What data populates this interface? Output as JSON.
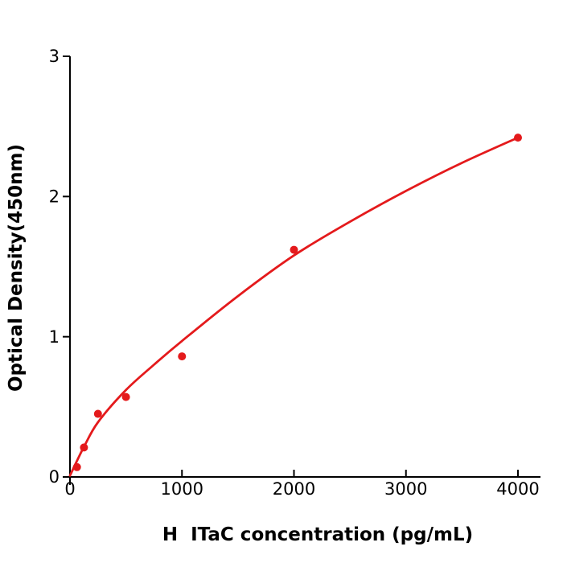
{
  "figure": {
    "background": "#ffffff",
    "accent_color": "#e41a1c",
    "axis_color": "#000000",
    "text_color": "#000000"
  },
  "chart_data": {
    "type": "scatter",
    "title": "",
    "xlabel": "H  ITaC concentration (pg/mL)",
    "ylabel": "Optical Density(450nm)",
    "xlim": [
      0,
      4200
    ],
    "ylim": [
      0,
      3
    ],
    "x_ticks": [
      0,
      1000,
      2000,
      3000,
      4000
    ],
    "x_tick_labels": [
      "0",
      "1000",
      "2000",
      "3000",
      "4000"
    ],
    "y_ticks": [
      0,
      1,
      2,
      3
    ],
    "y_tick_labels": [
      "0",
      "1",
      "2",
      "3"
    ],
    "grid": false,
    "legend": false,
    "series": [
      {
        "name": "standard-points",
        "kind": "scatter",
        "color": "#e41a1c",
        "marker": "circle",
        "x": [
          62.5,
          125,
          250,
          500,
          1000,
          2000,
          4000
        ],
        "y": [
          0.07,
          0.21,
          0.45,
          0.57,
          0.86,
          1.62,
          2.42
        ]
      },
      {
        "name": "fit-curve",
        "kind": "line",
        "color": "#e41a1c",
        "x": [
          0,
          62.5,
          125,
          250,
          500,
          750,
          1000,
          1500,
          2000,
          2500,
          3000,
          3500,
          4000
        ],
        "y": [
          0.01,
          0.115,
          0.215,
          0.39,
          0.62,
          0.8,
          0.97,
          1.29,
          1.58,
          1.82,
          2.04,
          2.24,
          2.42
        ]
      }
    ]
  }
}
